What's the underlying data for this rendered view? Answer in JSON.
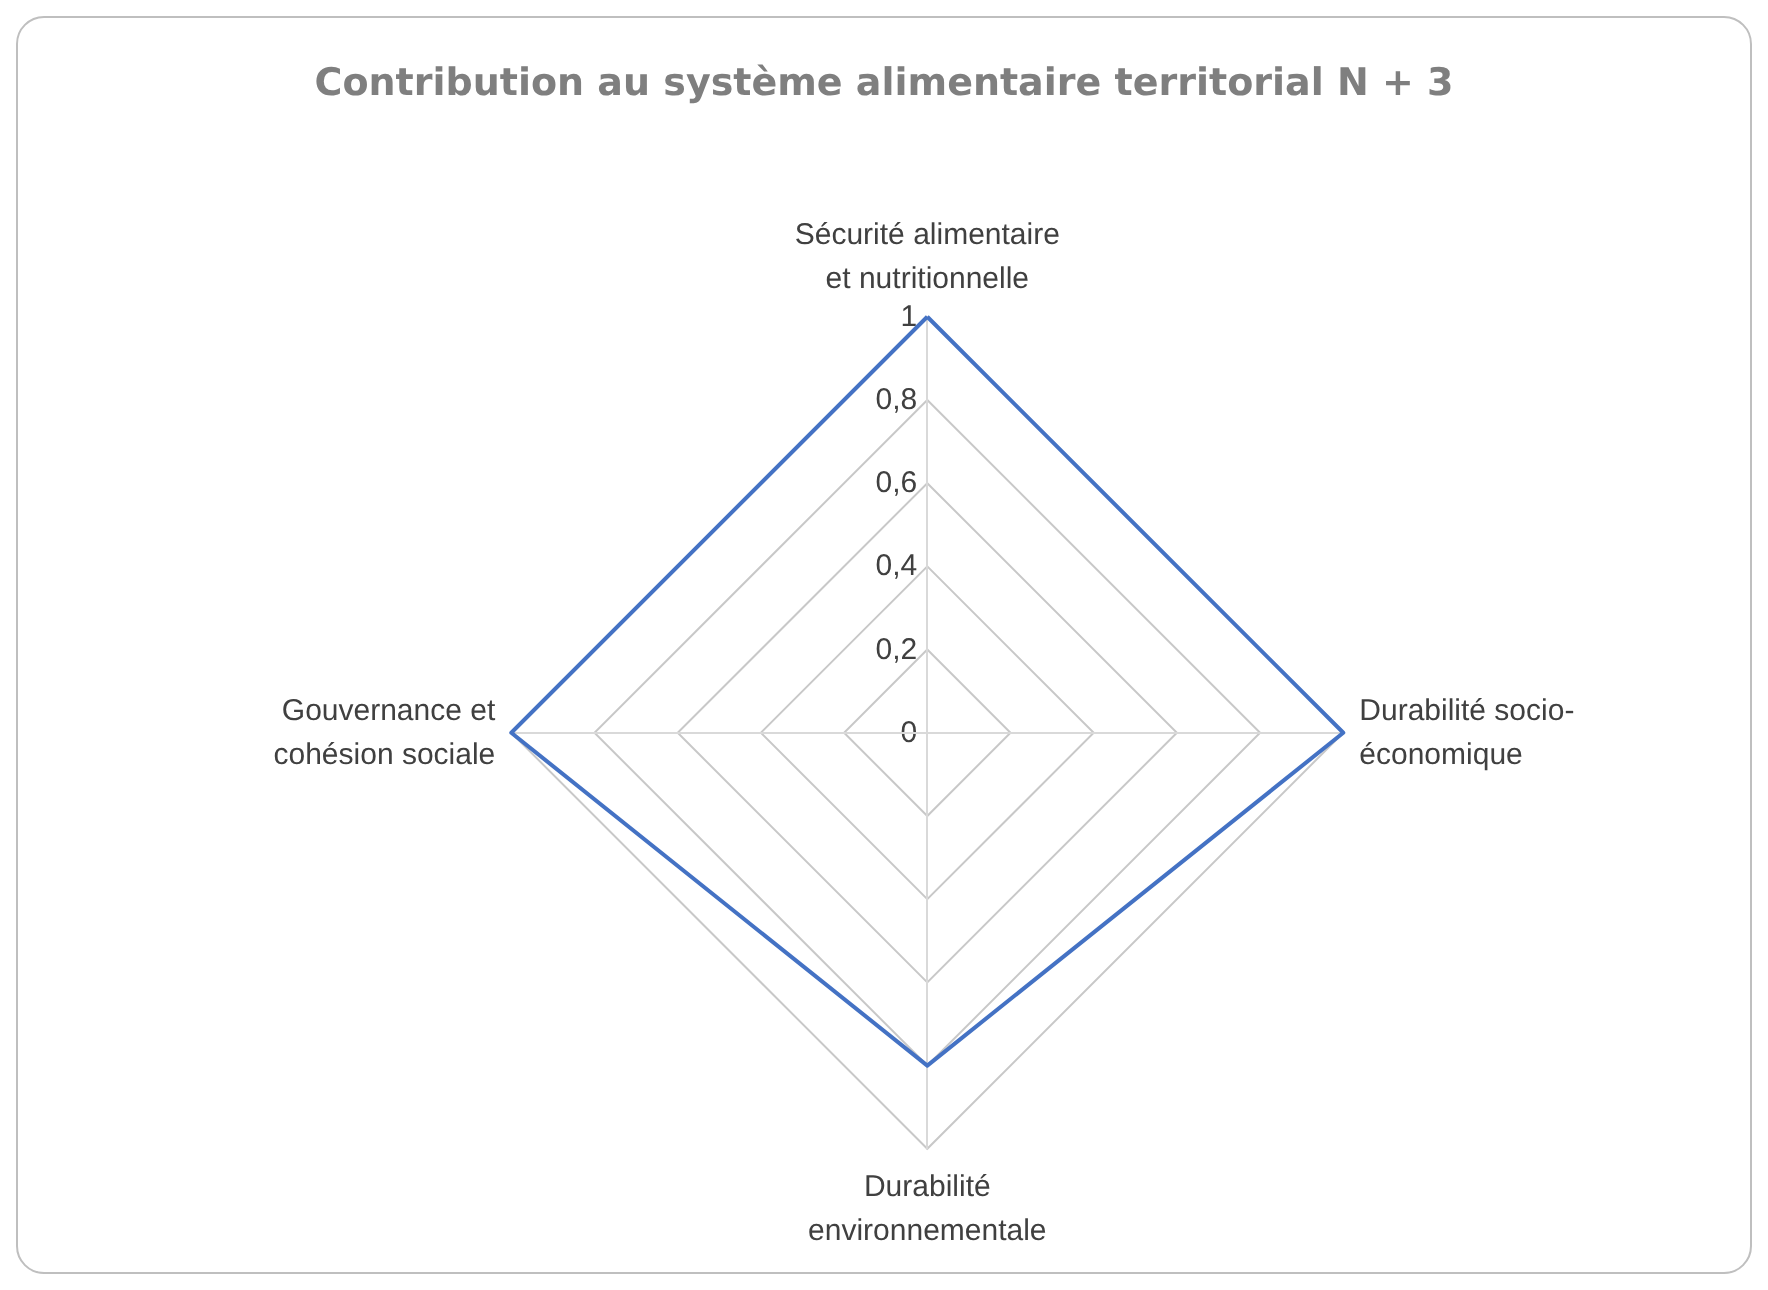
{
  "chart_data": {
    "type": "radar",
    "title": "Contribution au système alimentaire territorial N + 3",
    "categories": [
      "Sécurité alimentaire et nutritionnelle",
      "Durabilité socio-économique",
      "Durabilité environnementale",
      "Gouvernance et cohésion sociale"
    ],
    "series": [
      {
        "color": "#4472c4",
        "values": [
          1,
          1,
          0.8,
          1
        ]
      }
    ],
    "ylim": [
      0,
      1
    ],
    "yticks": [
      0,
      {
        "value": 0.2,
        "label": "0,2"
      },
      {
        "value": 0.4,
        "label": "0,4"
      },
      {
        "value": 0.6,
        "label": "0,6"
      },
      {
        "value": 0.8,
        "label": "0,8"
      },
      1
    ],
    "grid": true,
    "marker": "none",
    "line_style": "solid"
  }
}
